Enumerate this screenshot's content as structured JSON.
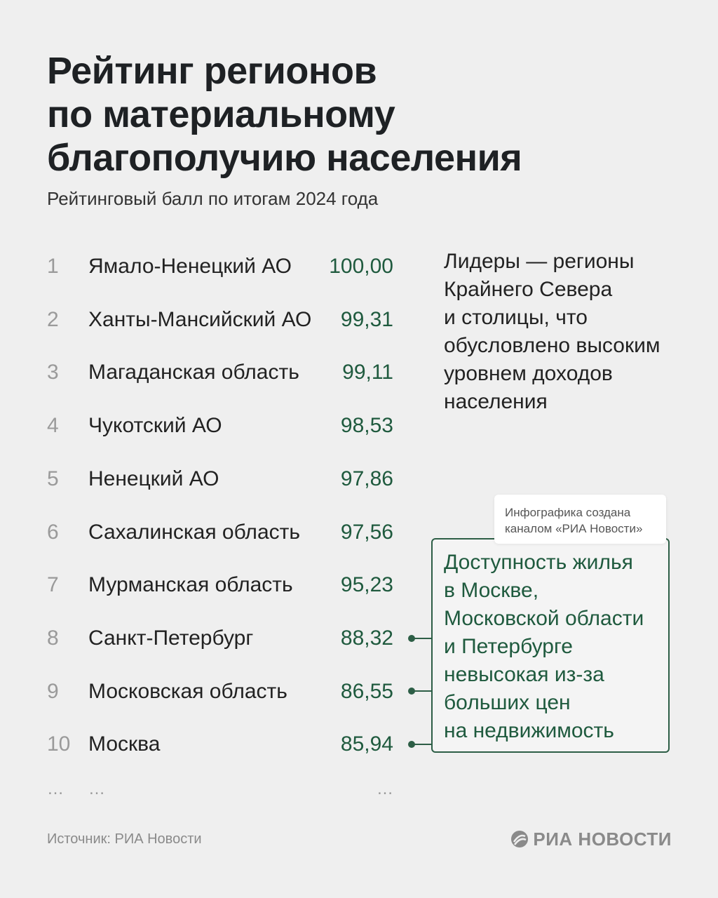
{
  "header": {
    "title": [
      "Рейтинг регионов",
      "по материальному",
      "благополучию населения"
    ],
    "subtitle": "Рейтинговый балл по итогам 2024 года"
  },
  "table": {
    "rows": [
      [
        "1",
        "Ямало-Ненецкий АО",
        "100,00"
      ],
      [
        "2",
        "Ханты-Мансийский АО",
        "99,31"
      ],
      [
        "3",
        "Магаданская область",
        "99,11"
      ],
      [
        "4",
        "Чукотский АО",
        "98,53"
      ],
      [
        "5",
        "Ненецкий АО",
        "97,86"
      ],
      [
        "6",
        "Сахалинская область",
        "97,56"
      ],
      [
        "7",
        "Мурманская область",
        "95,23"
      ],
      [
        "8",
        "Санкт-Петербург",
        "88,32"
      ],
      [
        "9",
        "Московская область",
        "86,55"
      ],
      [
        "10",
        "Москва",
        "85,94"
      ],
      [
        "…",
        "…",
        "…"
      ]
    ]
  },
  "notes": {
    "leaders": [
      "Лидеры — регионы",
      "Крайнего Севера",
      "и столицы, что",
      "обусловлено высоким",
      "уровнем доходов",
      "населения"
    ],
    "housing": [
      "Доступность жилья",
      "в Москве,",
      "Московской области",
      "и Петербурге",
      "невысокая из-за",
      "больших цен",
      "на недвижимость"
    ],
    "badge": [
      "Инфографика создана",
      "каналом «РИА Новости»"
    ]
  },
  "footer": {
    "source": "Источник: РИА Новости",
    "logo": "РИА НОВОСТИ"
  }
}
